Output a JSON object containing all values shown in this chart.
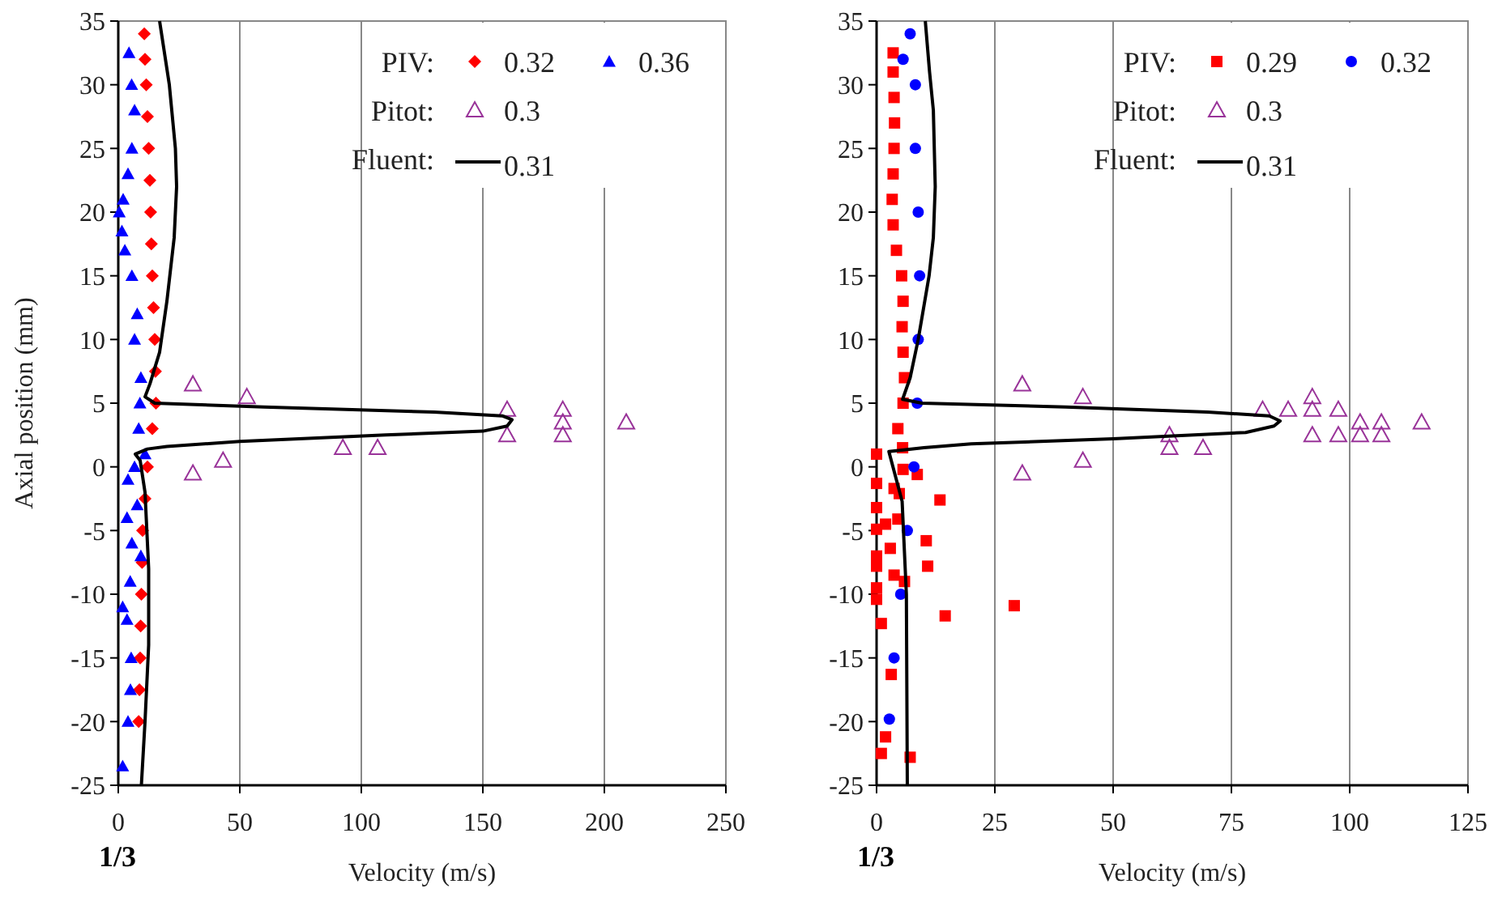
{
  "chart_data": [
    {
      "type": "scatter",
      "xlabel": "Velocity (m/s)",
      "ylabel": "Axial position (mm)",
      "xlim": [
        0,
        250
      ],
      "xticks": [
        0,
        50,
        100,
        150,
        200,
        250
      ],
      "ylim": [
        -25,
        35
      ],
      "yticks": [
        -25,
        -20,
        -15,
        -10,
        -5,
        0,
        5,
        10,
        15,
        20,
        25,
        30,
        35
      ],
      "grid": "x",
      "legend": "top right",
      "annotations": [
        "PIV:",
        "Pitot:",
        "Fluent:",
        "1/3"
      ],
      "series": [
        {
          "name": "0.32",
          "color": "#ff0000",
          "marker": "diamond",
          "x": [
            10.7,
            11,
            11.5,
            12,
            12.5,
            13,
            13.3,
            13.6,
            14,
            14.5,
            15,
            15.3,
            15.5,
            14,
            12,
            11,
            10,
            9.8,
            9.5,
            9.2,
            9,
            8.7,
            8.4
          ],
          "values": [
            34,
            32,
            30,
            27.5,
            25,
            22.5,
            20,
            17.5,
            15,
            12.5,
            10,
            7.5,
            5,
            3,
            0,
            -2.5,
            -5,
            -7.5,
            -10,
            -12.5,
            -15,
            -17.5,
            -20
          ]
        },
        {
          "name": "0.36",
          "color": "#0000ff",
          "marker": "triangle",
          "x": [
            4.4,
            5.5,
            6.7,
            5.6,
            4,
            2,
            0.4,
            1.5,
            2.7,
            5.6,
            7.8,
            6.7,
            9.3,
            8.9,
            8.4,
            11,
            6.7,
            4,
            7.8,
            3.6,
            5.6,
            9.3,
            4.9,
            1.8,
            3.6,
            5.3,
            5,
            4,
            1.8
          ],
          "values": [
            32.5,
            30,
            28,
            25,
            23,
            21,
            20,
            18.5,
            17,
            15,
            12,
            10,
            7,
            5,
            3,
            1,
            0,
            -1,
            -3,
            -4,
            -6,
            -7,
            -9,
            -11,
            -12,
            -15,
            -17.5,
            -20,
            -23.5
          ]
        },
        {
          "name": "0.3",
          "color": "#993399",
          "marker": "triangle-open",
          "x": [
            30.7,
            52.9,
            160,
            182.9,
            182.9,
            209,
            160,
            182.9,
            92.4,
            106.7,
            43.1,
            30.7
          ],
          "values": [
            6.5,
            5.5,
            4.5,
            4.5,
            3.5,
            3.5,
            2.5,
            2.5,
            1.5,
            1.5,
            0.5,
            -0.5
          ]
        },
        {
          "name": "0.31",
          "color": "#000000",
          "type": "line",
          "x": [
            17,
            21,
            23.5,
            24,
            23,
            20,
            17,
            13,
            11,
            15,
            60,
            130,
            158,
            162,
            160,
            150,
            110,
            50,
            20,
            12,
            7,
            9,
            11,
            12.5,
            12.5,
            11,
            9.5
          ],
          "values": [
            35,
            30,
            25,
            22,
            18,
            13,
            9,
            6.5,
            5.5,
            5,
            4.7,
            4.3,
            4,
            3.7,
            3.2,
            2.8,
            2.5,
            2,
            1.6,
            1.4,
            1,
            0.5,
            -2,
            -8,
            -14,
            -20,
            -25
          ]
        }
      ]
    },
    {
      "type": "scatter",
      "xlabel": "Velocity (m/s)",
      "xlim": [
        0,
        125
      ],
      "xticks": [
        0,
        25,
        50,
        75,
        100,
        125
      ],
      "ylim": [
        -25,
        35
      ],
      "yticks": [
        -25,
        -20,
        -15,
        -10,
        -5,
        0,
        5,
        10,
        15,
        20,
        25,
        30,
        35
      ],
      "grid": "x",
      "legend": "top right",
      "annotations": [
        "PIV:",
        "Pitot:",
        "Fluent:",
        "1/3"
      ],
      "series": [
        {
          "name": "0.29",
          "color": "#ff0000",
          "marker": "square",
          "x": [
            3.5,
            3.5,
            3.7,
            3.8,
            3.7,
            3.5,
            3.3,
            3.5,
            4.2,
            5.3,
            5.6,
            5.4,
            5.6,
            5.9,
            5.6,
            5.2,
            4.5,
            5.5,
            0,
            0,
            0,
            0,
            0,
            0,
            0,
            0,
            3.7,
            4.8,
            13.4,
            8.6,
            5.6,
            4.5,
            1.9,
            2.9,
            10.2,
            10.5,
            10.8,
            3.7,
            5.9,
            29.1,
            14.5,
            1,
            3.1,
            2.9,
            1.9,
            1,
            7.1
          ],
          "values": [
            32.5,
            31,
            29,
            27,
            25,
            23,
            21,
            19,
            17,
            15,
            13,
            11,
            9,
            7,
            5,
            null,
            3,
            1.5,
            1,
            -1.3,
            -3.2,
            -4.9,
            -7,
            -7.8,
            -9.5,
            -10.4,
            -1.7,
            -2.1,
            -2.6,
            -0.6,
            -0.2,
            -4.1,
            -4.5,
            -6.4,
            null,
            -5.8,
            -7.8,
            -8.5,
            -9,
            -10.9,
            -11.7,
            -12.3,
            -16.3,
            null,
            -21.2,
            -22.5,
            -22.8
          ]
        },
        {
          "name": "0.32",
          "color": "#0000ff",
          "marker": "circle",
          "x": [
            7.1,
            5.6,
            8.2,
            8.2,
            8.8,
            9.1,
            8.8,
            8.6,
            7.9,
            6.5,
            5.1,
            3.7,
            2.7
          ],
          "values": [
            34,
            32,
            30,
            25,
            20,
            15,
            10,
            5,
            0,
            -5,
            -10,
            -15,
            -19.8
          ]
        },
        {
          "name": "0.3",
          "color": "#993399",
          "marker": "triangle-open",
          "x": [
            30.8,
            43.6,
            81.6,
            87,
            92.1,
            92.1,
            97.6,
            102.2,
            106.7,
            115.2,
            92.1,
            97.6,
            102.2,
            106.7,
            61.9,
            61.9,
            69,
            43.6,
            30.8
          ],
          "values": [
            6.5,
            5.5,
            4.5,
            4.5,
            5.5,
            4.5,
            4.5,
            3.5,
            3.5,
            3.5,
            2.5,
            2.5,
            2.5,
            2.5,
            2.5,
            1.5,
            1.5,
            0.5,
            -0.5
          ]
        },
        {
          "name": "0.31",
          "color": "#000000",
          "type": "line",
          "x": [
            10.3,
            11.2,
            12,
            12.4,
            12,
            11.1,
            8.8,
            7.1,
            5.5,
            9.6,
            40,
            70,
            83,
            85.3,
            84,
            78,
            50,
            20,
            10,
            2.6,
            5.4,
            6.3,
            6.5
          ],
          "values": [
            35,
            31,
            28,
            22,
            18,
            15,
            10,
            7,
            5.3,
            5,
            4.7,
            4.3,
            4,
            3.6,
            3.2,
            2.7,
            2.2,
            1.8,
            1.5,
            1.2,
            -2.7,
            -10,
            -25
          ]
        }
      ]
    }
  ]
}
